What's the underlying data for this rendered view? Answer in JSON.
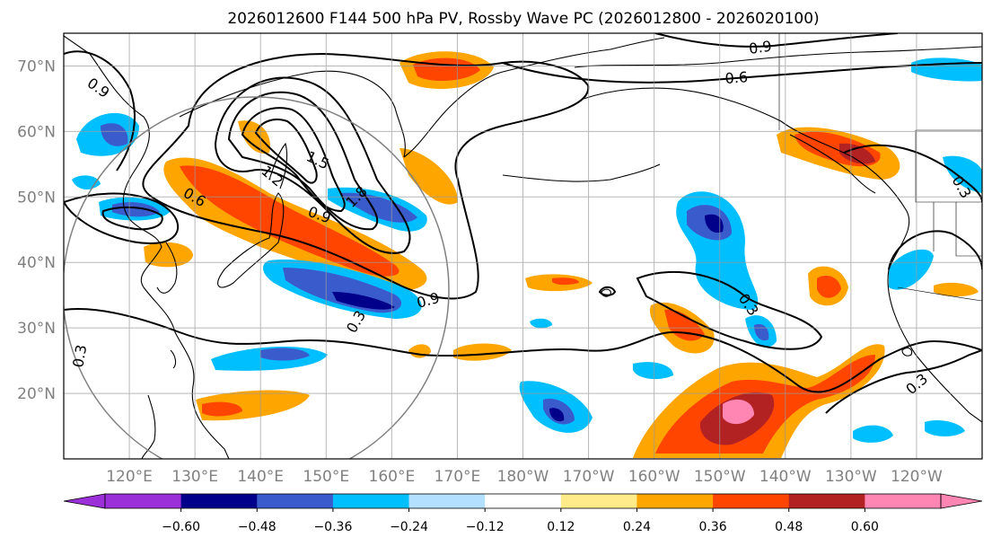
{
  "title": "2026012600 F144 500 hPa PV, Rossby Wave PC (2026012800 - 2026020100)",
  "colors": {
    "ocean": "#ffffff",
    "grid": "#999999",
    "coast": "#000000",
    "contour": "#000000",
    "axis_label": "#808080",
    "circle": "#808080"
  },
  "map": {
    "lon_range": [
      110,
      250
    ],
    "lat_range": [
      10,
      75
    ],
    "lat_labels": [
      "70°N",
      "60°N",
      "50°N",
      "40°N",
      "30°N",
      "20°N"
    ],
    "lon_labels": [
      "120°E",
      "130°E",
      "140°E",
      "150°E",
      "160°E",
      "170°E",
      "180°W",
      "170°W",
      "160°W",
      "150°W",
      "140°W",
      "130°W",
      "120°W"
    ],
    "contour_labels": [
      "0.9",
      "0.6",
      "0.9",
      "0.6",
      "1.5",
      "1.2",
      "1.8",
      "0.9",
      "0.9",
      "0.3",
      "0.3",
      "0.3",
      "0.3",
      "0.3"
    ]
  },
  "colorbar": {
    "ticks": [
      "−0.60",
      "−0.48",
      "−0.36",
      "−0.24",
      "−0.12",
      "0.12",
      "0.24",
      "0.36",
      "0.48",
      "0.60"
    ],
    "colors": [
      "#9b30d9",
      "#00008b",
      "#3a5bcc",
      "#00bfff",
      "#b3e0ff",
      "#ffffff",
      "#ffeb8a",
      "#ffa500",
      "#ff4500",
      "#b22222",
      "#ff85b3",
      "#ff85b3"
    ]
  },
  "chart_data": {
    "type": "heatmap",
    "title": "2026012600 F144 500 hPa PV, Rossby Wave PC (2026012800 - 2026020100)",
    "x_range_deg_lon": [
      110,
      250
    ],
    "y_range_deg_lat": [
      10,
      75
    ],
    "filled_levels": [
      -0.6,
      -0.48,
      -0.36,
      -0.24,
      -0.12,
      0.12,
      0.24,
      0.36,
      0.48,
      0.6
    ],
    "contour_levels": [
      0.3,
      0.6,
      0.9,
      1.2,
      1.5,
      1.8
    ],
    "grid": true
  }
}
